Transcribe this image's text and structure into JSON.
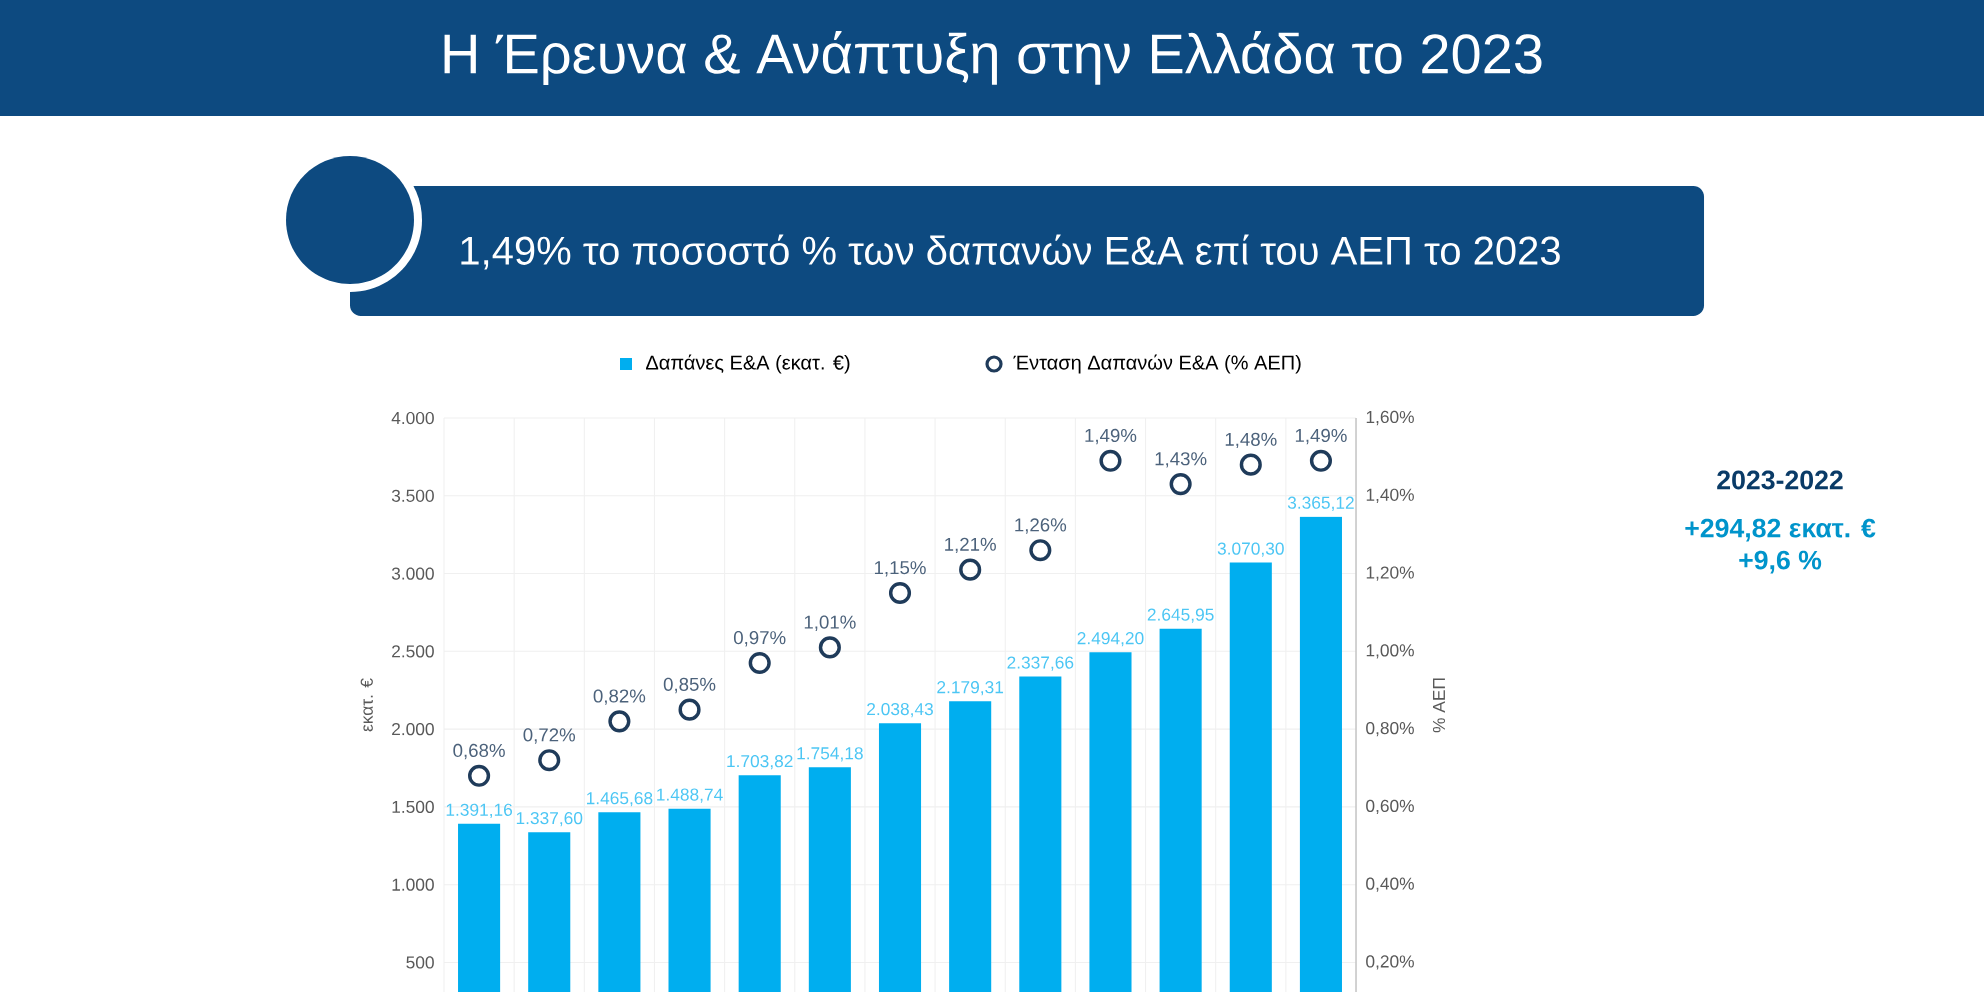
{
  "chart_data": {
    "type": "bar",
    "title": "Η Έρευνα & Ανάπτυξη στην Ελλάδα το 2023",
    "subtitle": "1,49% το ποσοστό % των δαπανών Ε&Α επί του ΑΕΠ το 2023",
    "ylabel": "εκατ. €",
    "y2label": "% ΑΕΠ",
    "categories": [
      null,
      null,
      null,
      null,
      null,
      null,
      null,
      null,
      null,
      null,
      null,
      null,
      null
    ],
    "series": [
      {
        "name": "Δαπάνες Ε&Α (εκατ. €)",
        "color": "#00aeef",
        "values": [
          1391.16,
          1337.6,
          1465.68,
          1488.74,
          1703.82,
          1754.18,
          2038.43,
          2179.31,
          2337.66,
          2494.2,
          2645.95,
          3070.3,
          3365.12
        ],
        "value_labels": [
          "1.391,16",
          "1.337,60",
          "1.465,68",
          "1.488,74",
          "1.703,82",
          "1.754,18",
          "2.038,43",
          "2.179,31",
          "2.337,66",
          "2.494,20",
          "2.645,95",
          "3.070,30",
          "3.365,12"
        ]
      },
      {
        "name": "Ένταση Δαπανών Ε&Α  (% ΑΕΠ)",
        "type": "scatter",
        "axis": "y2",
        "marker": "circle",
        "color": "#1f3b5a",
        "values": [
          0.68,
          0.72,
          0.82,
          0.85,
          0.97,
          1.01,
          1.15,
          1.21,
          1.26,
          1.49,
          1.43,
          1.48,
          1.49
        ],
        "value_labels": [
          "0,68%",
          "0,72%",
          "0,82%",
          "0,85%",
          "0,97%",
          "1,01%",
          "1,15%",
          "1,21%",
          "1,26%",
          "1,49%",
          "1,43%",
          "1,48%",
          "1,49%"
        ]
      }
    ],
    "ylim": [
      310,
      4000
    ],
    "yticks": [
      {
        "value": 500,
        "label": "500"
      },
      {
        "value": 1000,
        "label": "1.000"
      },
      {
        "value": 1500,
        "label": "1.500"
      },
      {
        "value": 2000,
        "label": "2.000"
      },
      {
        "value": 2500,
        "label": "2.500"
      },
      {
        "value": 3000,
        "label": "3.000"
      },
      {
        "value": 3500,
        "label": "3.500"
      },
      {
        "value": 4000,
        "label": "4.000"
      }
    ],
    "y2lim": [
      0.124,
      1.6
    ],
    "y2ticks": [
      {
        "value": 0.2,
        "label": "0,20%"
      },
      {
        "value": 0.4,
        "label": "0,40%"
      },
      {
        "value": 0.6,
        "label": "0,60%"
      },
      {
        "value": 0.8,
        "label": "0,80%"
      },
      {
        "value": 1.0,
        "label": "1,00%"
      },
      {
        "value": 1.2,
        "label": "1,20%"
      },
      {
        "value": 1.4,
        "label": "1,40%"
      },
      {
        "value": 1.6,
        "label": "1,60%"
      }
    ],
    "grid": true,
    "legend": "top",
    "annotations": [
      "2023-2022",
      "+294,82 εκατ. €",
      "+9,6 %"
    ]
  }
}
